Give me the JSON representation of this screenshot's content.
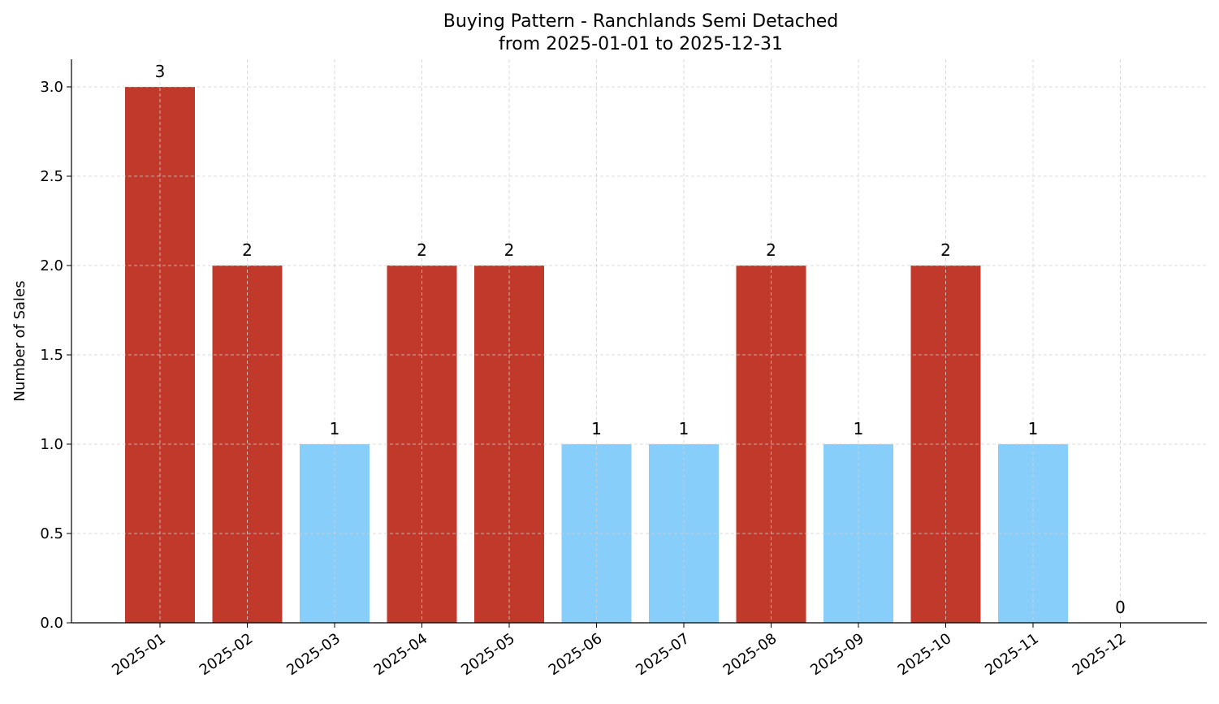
{
  "chart_data": {
    "type": "bar",
    "title": "Buying Pattern - Ranchlands Semi Detached",
    "subtitle": "from 2025-01-01 to 2025-12-31",
    "xlabel": "",
    "ylabel": "Number of Sales",
    "ylim": [
      0,
      3.15
    ],
    "yticks": [
      "0.0",
      "0.5",
      "1.0",
      "1.5",
      "2.0",
      "2.5",
      "3.0"
    ],
    "grid": true,
    "categories": [
      "2025-01",
      "2025-02",
      "2025-03",
      "2025-04",
      "2025-05",
      "2025-06",
      "2025-07",
      "2025-08",
      "2025-09",
      "2025-10",
      "2025-11",
      "2025-12"
    ],
    "values": [
      3,
      2,
      1,
      2,
      2,
      1,
      1,
      2,
      1,
      2,
      1,
      0
    ],
    "value_labels": [
      "3",
      "2",
      "1",
      "2",
      "2",
      "1",
      "1",
      "2",
      "1",
      "2",
      "1",
      "0"
    ],
    "colors": {
      "high": "#c0392b",
      "low": "#87cefa"
    }
  }
}
